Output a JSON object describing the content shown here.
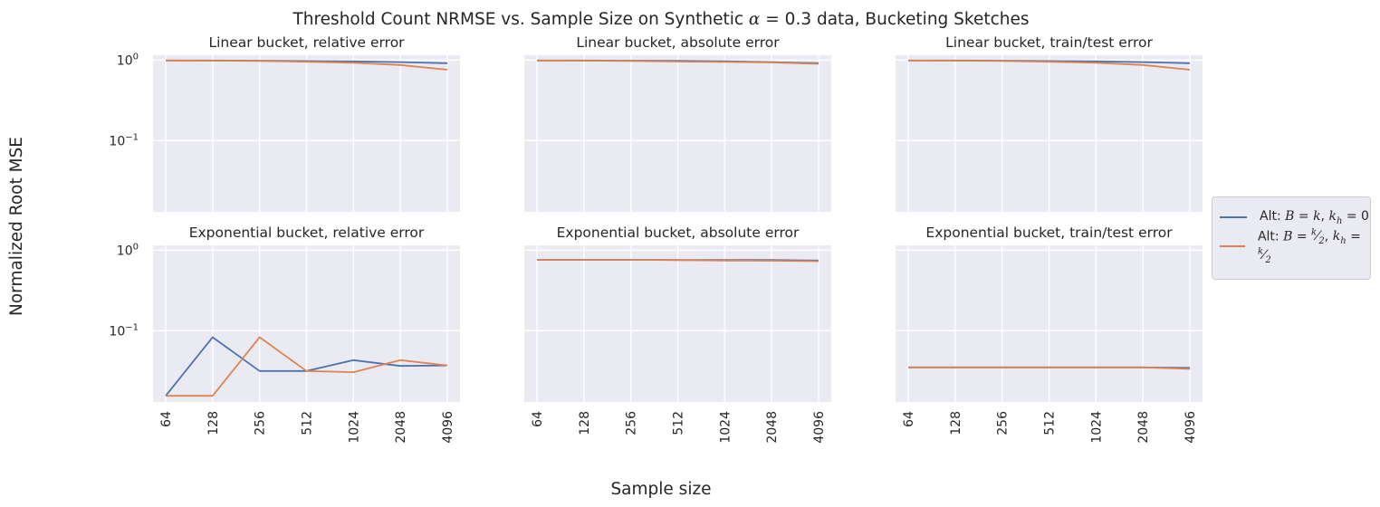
{
  "figure": {
    "title": "Threshold Count NRMSE vs. Sample Size on Synthetic α = 0.3 data, Bucketing Sketches",
    "xlabel": "Sample size",
    "ylabel": "Normalized Root MSE"
  },
  "legend": {
    "items": [
      {
        "label": "Alt: B = k, k_h = 0",
        "color": "#4c72b0"
      },
      {
        "label": "Alt: B = k/2, k_h = k/2",
        "color": "#dd8452"
      }
    ]
  },
  "colors": {
    "series1": "#4c72b0",
    "series2": "#dd8452",
    "panel_bg": "#eaeaf2",
    "grid": "#ffffff"
  },
  "chart_data": [
    {
      "type": "line",
      "title": "Linear bucket, relative error",
      "yscale": "log",
      "ylim": [
        0.013,
        1.15
      ],
      "categories": [
        "64",
        "128",
        "256",
        "512",
        "1024",
        "2048",
        "4096"
      ],
      "yticks": [
        "10^0",
        "10^-1"
      ],
      "series": [
        {
          "name": "Alt: B = k, k_h = 0",
          "values": [
            0.99,
            0.99,
            0.985,
            0.975,
            0.965,
            0.945,
            0.915
          ]
        },
        {
          "name": "Alt: B = k/2, k_h = k/2",
          "values": [
            0.99,
            0.985,
            0.975,
            0.955,
            0.925,
            0.87,
            0.76
          ]
        }
      ]
    },
    {
      "type": "line",
      "title": "Linear bucket, absolute error",
      "yscale": "log",
      "ylim": [
        0.013,
        1.15
      ],
      "categories": [
        "64",
        "128",
        "256",
        "512",
        "1024",
        "2048",
        "4096"
      ],
      "series": [
        {
          "name": "Alt: B = k, k_h = 0",
          "values": [
            0.99,
            0.99,
            0.985,
            0.98,
            0.97,
            0.945,
            0.915
          ]
        },
        {
          "name": "Alt: B = k/2, k_h = k/2",
          "values": [
            0.99,
            0.985,
            0.975,
            0.96,
            0.95,
            0.935,
            0.9
          ]
        }
      ]
    },
    {
      "type": "line",
      "title": "Linear bucket, train/test error",
      "yscale": "log",
      "ylim": [
        0.013,
        1.15
      ],
      "categories": [
        "64",
        "128",
        "256",
        "512",
        "1024",
        "2048",
        "4096"
      ],
      "series": [
        {
          "name": "Alt: B = k, k_h = 0",
          "values": [
            0.99,
            0.99,
            0.985,
            0.975,
            0.965,
            0.945,
            0.915
          ]
        },
        {
          "name": "Alt: B = k/2, k_h = k/2",
          "values": [
            0.99,
            0.985,
            0.975,
            0.955,
            0.925,
            0.87,
            0.76
          ]
        }
      ]
    },
    {
      "type": "line",
      "title": "Exponential bucket, relative error",
      "yscale": "log",
      "ylim": [
        0.013,
        1.15
      ],
      "categories": [
        "64",
        "128",
        "256",
        "512",
        "1024",
        "2048",
        "4096"
      ],
      "yticks": [
        "10^0",
        "10^-1"
      ],
      "series": [
        {
          "name": "Alt: B = k, k_h = 0",
          "values": [
            0.0155,
            0.083,
            0.0315,
            0.0315,
            0.043,
            0.0365,
            0.037
          ]
        },
        {
          "name": "Alt: B = k/2, k_h = k/2",
          "values": [
            0.0155,
            0.0155,
            0.083,
            0.0315,
            0.0305,
            0.043,
            0.037
          ]
        }
      ]
    },
    {
      "type": "line",
      "title": "Exponential bucket, absolute error",
      "yscale": "log",
      "ylim": [
        0.013,
        1.15
      ],
      "categories": [
        "64",
        "128",
        "256",
        "512",
        "1024",
        "2048",
        "4096"
      ],
      "series": [
        {
          "name": "Alt: B = k, k_h = 0",
          "values": [
            0.76,
            0.76,
            0.76,
            0.755,
            0.755,
            0.755,
            0.745
          ]
        },
        {
          "name": "Alt: B = k/2, k_h = k/2",
          "values": [
            0.76,
            0.76,
            0.76,
            0.755,
            0.745,
            0.74,
            0.73
          ]
        }
      ]
    },
    {
      "type": "line",
      "title": "Exponential bucket, train/test error",
      "yscale": "log",
      "ylim": [
        0.013,
        1.15
      ],
      "categories": [
        "64",
        "128",
        "256",
        "512",
        "1024",
        "2048",
        "4096"
      ],
      "series": [
        {
          "name": "Alt: B = k, k_h = 0",
          "values": [
            0.035,
            0.035,
            0.035,
            0.035,
            0.035,
            0.035,
            0.0345
          ]
        },
        {
          "name": "Alt: B = k/2, k_h = k/2",
          "values": [
            0.035,
            0.035,
            0.035,
            0.035,
            0.035,
            0.035,
            0.0335
          ]
        }
      ]
    }
  ]
}
